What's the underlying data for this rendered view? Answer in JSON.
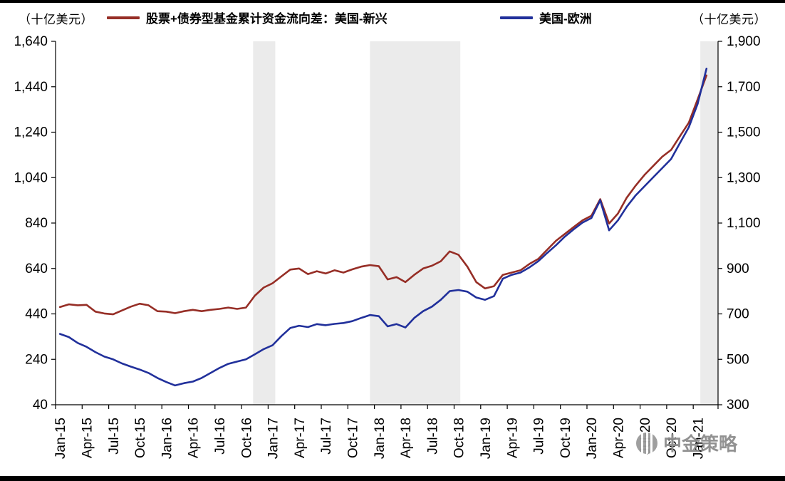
{
  "units": {
    "left": "（十亿美元）",
    "right": "（十亿美元）"
  },
  "legend": [
    {
      "label": "股票+债券型基金累计资金流向差：美国-新兴",
      "color": "#962E26"
    },
    {
      "label": "美国-欧洲",
      "color": "#21309B"
    }
  ],
  "watermark": {
    "text": "中金策略"
  },
  "chart_data": {
    "type": "line",
    "x_start": "Jan-15",
    "x_interval": "monthly",
    "x_tick_labels": [
      "Jan-15",
      "Apr-15",
      "Jul-15",
      "Oct-15",
      "Jan-16",
      "Apr-16",
      "Jul-16",
      "Oct-16",
      "Jan-17",
      "Apr-17",
      "Jul-17",
      "Oct-17",
      "Jan-18",
      "Apr-18",
      "Jul-18",
      "Oct-18",
      "Jan-19",
      "Apr-19",
      "Jul-19",
      "Oct-19",
      "Jan-20",
      "Apr-20",
      "Jul-20",
      "Oct-20",
      "Jan-21"
    ],
    "left_axis": {
      "min": 40,
      "max": 1640,
      "step": 200,
      "unit": "（十亿美元）",
      "tick_labels": [
        "40",
        "240",
        "440",
        "640",
        "840",
        "1,040",
        "1,240",
        "1,440",
        "1,640"
      ]
    },
    "right_axis": {
      "min": 300,
      "max": 1900,
      "step": 200,
      "unit": "（十亿美元）",
      "tick_labels": [
        "300",
        "500",
        "700",
        "900",
        "1,100",
        "1,300",
        "1,500",
        "1,700",
        "1,900"
      ]
    },
    "band_color": "#EBEBEB",
    "grid": "off",
    "legend_position": "top",
    "shaded_regions": [
      {
        "from_month": 22.3,
        "to_month": 24.8
      },
      {
        "from_month": 35.5,
        "to_month": 45.7
      },
      {
        "from_month": 72.8,
        "to_month": 74.8
      }
    ],
    "series": [
      {
        "name": "股票+债券型基金累计资金流向差：美国-新兴",
        "axis": "left",
        "color": "#962E26",
        "values": [
          470,
          482,
          478,
          480,
          450,
          442,
          438,
          455,
          472,
          485,
          478,
          452,
          450,
          443,
          452,
          458,
          452,
          458,
          462,
          468,
          462,
          468,
          520,
          556,
          575,
          605,
          635,
          640,
          615,
          628,
          618,
          632,
          622,
          636,
          648,
          655,
          650,
          592,
          602,
          580,
          612,
          640,
          652,
          672,
          715,
          700,
          648,
          580,
          552,
          562,
          612,
          622,
          632,
          660,
          682,
          722,
          762,
          792,
          822,
          852,
          872,
          945,
          838,
          882,
          952,
          1005,
          1052,
          1092,
          1132,
          1162,
          1222,
          1282,
          1385,
          1490
        ]
      },
      {
        "name": "美国-欧洲",
        "axis": "right",
        "color": "#21309B",
        "values": [
          612,
          598,
          572,
          555,
          532,
          512,
          500,
          482,
          468,
          455,
          440,
          418,
          400,
          385,
          395,
          402,
          418,
          440,
          462,
          480,
          490,
          500,
          522,
          545,
          562,
          602,
          638,
          648,
          642,
          655,
          650,
          656,
          660,
          668,
          682,
          695,
          690,
          645,
          655,
          640,
          682,
          712,
          732,
          762,
          800,
          805,
          798,
          772,
          762,
          778,
          855,
          872,
          882,
          905,
          932,
          968,
          1002,
          1040,
          1072,
          1102,
          1122,
          1200,
          1068,
          1112,
          1172,
          1222,
          1262,
          1302,
          1342,
          1382,
          1452,
          1522,
          1625,
          1780
        ]
      }
    ]
  }
}
